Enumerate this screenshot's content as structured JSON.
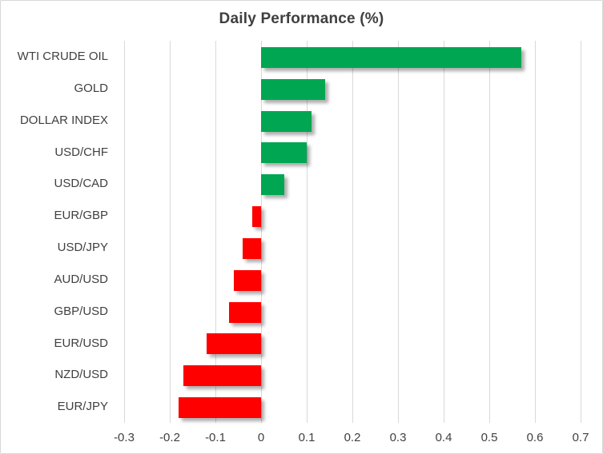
{
  "window": {
    "background_color": "#ffffff",
    "border_color": "#d7d7d7"
  },
  "chart_data": {
    "type": "bar",
    "orientation": "horizontal",
    "title": "Daily Performance (%)",
    "xlabel": "",
    "ylabel": "",
    "categories": [
      "WTI CRUDE OIL",
      "GOLD",
      "DOLLAR INDEX",
      "USD/CHF",
      "USD/CAD",
      "EUR/GBP",
      "USD/JPY",
      "AUD/USD",
      "GBP/USD",
      "EUR/USD",
      "NZD/USD",
      "EUR/JPY"
    ],
    "values": [
      0.57,
      0.14,
      0.11,
      0.1,
      0.05,
      -0.02,
      -0.04,
      -0.06,
      -0.07,
      -0.12,
      -0.17,
      -0.18
    ],
    "xlim": [
      -0.3,
      0.7
    ],
    "xticks": [
      -0.3,
      -0.2,
      -0.1,
      0,
      0.1,
      0.2,
      0.3,
      0.4,
      0.5,
      0.6,
      0.7
    ],
    "xtick_labels": [
      "-0.3",
      "-0.2",
      "-0.1",
      "0",
      "0.1",
      "0.2",
      "0.3",
      "0.4",
      "0.5",
      "0.6",
      "0.7"
    ],
    "grid": true,
    "legend": false,
    "colors": {
      "positive": "#00A651",
      "negative": "#FF0000",
      "gridline": "#d9d9d9",
      "title": "#3f3f3f",
      "labels": "#404040"
    }
  }
}
